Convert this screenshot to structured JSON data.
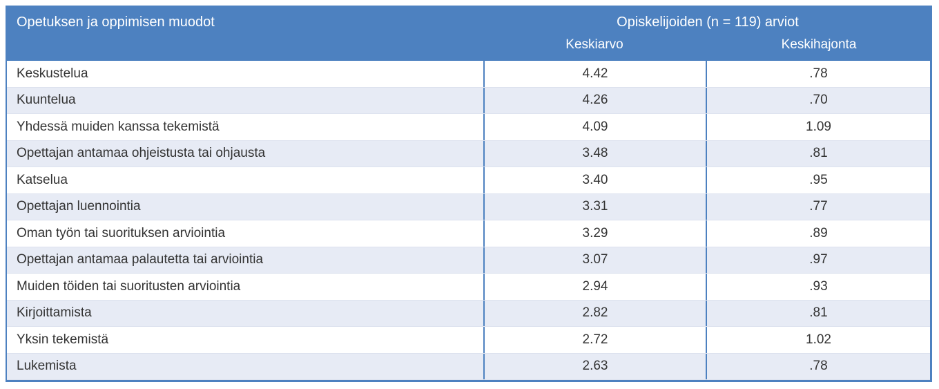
{
  "table": {
    "accent_color": "#4d81c0",
    "alt_row_color": "#e7ebf5",
    "header": {
      "col1_title": "Opetuksen ja oppimisen muodot",
      "group_title": "Opiskelijoiden (n = 119) arviot",
      "mean_label": "Keskiarvo",
      "sd_label": "Keskihajonta"
    },
    "rows": [
      {
        "label": "Keskustelua",
        "keskiarvo": "4.42",
        "keskihajonta": ".78"
      },
      {
        "label": "Kuuntelua",
        "keskiarvo": "4.26",
        "keskihajonta": ".70"
      },
      {
        "label": "Yhdessä muiden kanssa tekemistä",
        "keskiarvo": "4.09",
        "keskihajonta": "1.09"
      },
      {
        "label": "Opettajan antamaa ohjeistusta tai ohjausta",
        "keskiarvo": "3.48",
        "keskihajonta": ".81"
      },
      {
        "label": "Katselua",
        "keskiarvo": "3.40",
        "keskihajonta": ".95"
      },
      {
        "label": "Opettajan luennointia",
        "keskiarvo": "3.31",
        "keskihajonta": ".77"
      },
      {
        "label": "Oman työn tai suorituksen arviointia",
        "keskiarvo": "3.29",
        "keskihajonta": ".89"
      },
      {
        "label": "Opettajan antamaa palautetta tai arviointia",
        "keskiarvo": "3.07",
        "keskihajonta": ".97"
      },
      {
        "label": "Muiden töiden tai suoritusten arviointia",
        "keskiarvo": "2.94",
        "keskihajonta": ".93"
      },
      {
        "label": "Kirjoittamista",
        "keskiarvo": "2.82",
        "keskihajonta": ".81"
      },
      {
        "label": "Yksin tekemistä",
        "keskiarvo": "2.72",
        "keskihajonta": "1.02"
      },
      {
        "label": "Lukemista",
        "keskiarvo": "2.63",
        "keskihajonta": ".78"
      }
    ]
  }
}
